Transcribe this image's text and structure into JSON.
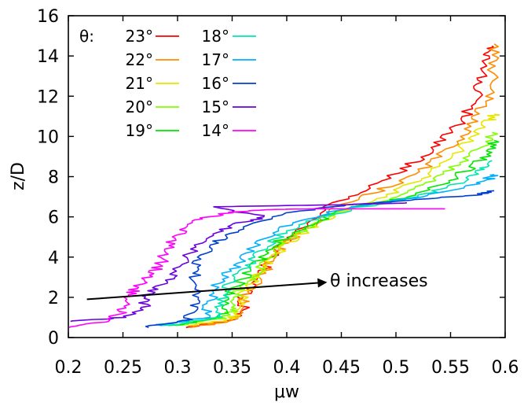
{
  "chart_data": {
    "type": "line",
    "title": "",
    "xlabel": "μw",
    "ylabel": "z/D",
    "xlim": [
      0.2,
      0.6
    ],
    "ylim": [
      0,
      16
    ],
    "xticks": [
      "0.2",
      "0.25",
      "0.3",
      "0.35",
      "0.4",
      "0.45",
      "0.5",
      "0.55",
      "0.6"
    ],
    "yticks": [
      "0",
      "2",
      "4",
      "6",
      "8",
      "10",
      "12",
      "14",
      "16"
    ],
    "grid": false,
    "legend": {
      "title": "θ:",
      "placement": "top-left"
    },
    "annotation": {
      "text": "θ increases",
      "arrow_from": [
        0.217,
        1.9
      ],
      "arrow_to": [
        0.437,
        2.75
      ]
    },
    "series": [
      {
        "name": "23°",
        "color": "#ff0000",
        "points": [
          [
            0.305,
            0.5
          ],
          [
            0.345,
            0.8
          ],
          [
            0.36,
            1.2
          ],
          [
            0.36,
            2.0
          ],
          [
            0.37,
            2.8
          ],
          [
            0.38,
            3.5
          ],
          [
            0.39,
            4.3
          ],
          [
            0.41,
            5.2
          ],
          [
            0.435,
            6.5
          ],
          [
            0.47,
            7.3
          ],
          [
            0.505,
            8.3
          ],
          [
            0.53,
            9.2
          ],
          [
            0.55,
            10.2
          ],
          [
            0.565,
            11.1
          ],
          [
            0.575,
            12.2
          ],
          [
            0.58,
            13.0
          ],
          [
            0.585,
            14.0
          ],
          [
            0.588,
            14.5
          ]
        ]
      },
      {
        "name": "22°",
        "color": "#ff8c00",
        "points": [
          [
            0.31,
            0.5
          ],
          [
            0.348,
            0.8
          ],
          [
            0.36,
            1.3
          ],
          [
            0.362,
            2.1
          ],
          [
            0.375,
            2.9
          ],
          [
            0.385,
            3.7
          ],
          [
            0.395,
            4.5
          ],
          [
            0.415,
            5.3
          ],
          [
            0.44,
            6.3
          ],
          [
            0.48,
            7.2
          ],
          [
            0.515,
            8.0
          ],
          [
            0.54,
            9.0
          ],
          [
            0.56,
            10.0
          ],
          [
            0.575,
            11.0
          ],
          [
            0.585,
            12.0
          ],
          [
            0.59,
            13.5
          ],
          [
            0.59,
            14.6
          ]
        ]
      },
      {
        "name": "21°",
        "color": "#e6e600",
        "points": [
          [
            0.31,
            0.6
          ],
          [
            0.35,
            0.9
          ],
          [
            0.358,
            1.4
          ],
          [
            0.36,
            2.2
          ],
          [
            0.372,
            3.0
          ],
          [
            0.385,
            3.8
          ],
          [
            0.398,
            4.6
          ],
          [
            0.42,
            5.4
          ],
          [
            0.445,
            6.2
          ],
          [
            0.49,
            7.0
          ],
          [
            0.525,
            7.9
          ],
          [
            0.55,
            8.9
          ],
          [
            0.57,
            9.9
          ],
          [
            0.585,
            10.8
          ],
          [
            0.59,
            11.1
          ]
        ]
      },
      {
        "name": "20°",
        "color": "#80ff00",
        "points": [
          [
            0.3,
            0.6
          ],
          [
            0.345,
            1.0
          ],
          [
            0.352,
            1.5
          ],
          [
            0.355,
            2.3
          ],
          [
            0.37,
            3.1
          ],
          [
            0.382,
            3.9
          ],
          [
            0.395,
            4.7
          ],
          [
            0.42,
            5.5
          ],
          [
            0.45,
            6.3
          ],
          [
            0.5,
            7.0
          ],
          [
            0.535,
            7.8
          ],
          [
            0.56,
            8.7
          ],
          [
            0.58,
            9.6
          ],
          [
            0.588,
            10.2
          ]
        ]
      },
      {
        "name": "19°",
        "color": "#00e600",
        "points": [
          [
            0.295,
            0.6
          ],
          [
            0.34,
            1.0
          ],
          [
            0.345,
            1.6
          ],
          [
            0.35,
            2.4
          ],
          [
            0.365,
            3.2
          ],
          [
            0.378,
            4.0
          ],
          [
            0.392,
            4.8
          ],
          [
            0.42,
            5.6
          ],
          [
            0.455,
            6.4
          ],
          [
            0.51,
            7.0
          ],
          [
            0.545,
            7.7
          ],
          [
            0.57,
            8.5
          ],
          [
            0.585,
            9.2
          ],
          [
            0.59,
            9.8
          ]
        ]
      },
      {
        "name": "18°",
        "color": "#00e6b0",
        "points": [
          [
            0.29,
            0.6
          ],
          [
            0.335,
            1.0
          ],
          [
            0.34,
            1.7
          ],
          [
            0.345,
            2.5
          ],
          [
            0.36,
            3.3
          ],
          [
            0.372,
            4.1
          ],
          [
            0.388,
            4.9
          ],
          [
            0.415,
            5.7
          ],
          [
            0.46,
            6.4
          ],
          [
            0.52,
            7.0
          ],
          [
            0.555,
            7.6
          ],
          [
            0.578,
            8.3
          ],
          [
            0.588,
            8.8
          ]
        ]
      },
      {
        "name": "17°",
        "color": "#00b0ff",
        "points": [
          [
            0.28,
            0.6
          ],
          [
            0.325,
            1.0
          ],
          [
            0.33,
            1.8
          ],
          [
            0.335,
            2.6
          ],
          [
            0.35,
            3.4
          ],
          [
            0.365,
            4.2
          ],
          [
            0.38,
            5.0
          ],
          [
            0.41,
            5.8
          ],
          [
            0.46,
            6.5
          ],
          [
            0.525,
            7.0
          ],
          [
            0.565,
            7.5
          ],
          [
            0.585,
            7.9
          ],
          [
            0.59,
            8.1
          ]
        ]
      },
      {
        "name": "16°",
        "color": "#0040d0",
        "points": [
          [
            0.27,
            0.5
          ],
          [
            0.31,
            0.9
          ],
          [
            0.315,
            1.6
          ],
          [
            0.32,
            2.4
          ],
          [
            0.315,
            3.2
          ],
          [
            0.32,
            4.0
          ],
          [
            0.335,
            4.8
          ],
          [
            0.36,
            5.4
          ],
          [
            0.4,
            6.2
          ],
          [
            0.455,
            6.6
          ],
          [
            0.53,
            6.9
          ],
          [
            0.575,
            7.1
          ],
          [
            0.59,
            7.3
          ]
        ]
      },
      {
        "name": "15°",
        "color": "#6a00e0",
        "points": [
          [
            0.2,
            0.8
          ],
          [
            0.25,
            1.0
          ],
          [
            0.27,
            1.5
          ],
          [
            0.27,
            2.1
          ],
          [
            0.29,
            2.7
          ],
          [
            0.3,
            3.3
          ],
          [
            0.31,
            4.2
          ],
          [
            0.33,
            5.0
          ],
          [
            0.35,
            5.6
          ],
          [
            0.38,
            6.0
          ],
          [
            0.33,
            6.5
          ],
          [
            0.45,
            6.6
          ],
          [
            0.51,
            6.7
          ]
        ]
      },
      {
        "name": "14°",
        "color": "#ff00ff",
        "points": [
          [
            0.2,
            0.5
          ],
          [
            0.235,
            0.8
          ],
          [
            0.25,
            1.3
          ],
          [
            0.255,
            2.0
          ],
          [
            0.262,
            2.5
          ],
          [
            0.275,
            3.1
          ],
          [
            0.285,
            3.7
          ],
          [
            0.29,
            4.4
          ],
          [
            0.3,
            5.1
          ],
          [
            0.315,
            5.8
          ],
          [
            0.345,
            6.2
          ],
          [
            0.38,
            6.35
          ],
          [
            0.42,
            6.4
          ],
          [
            0.545,
            6.4
          ]
        ]
      }
    ]
  }
}
